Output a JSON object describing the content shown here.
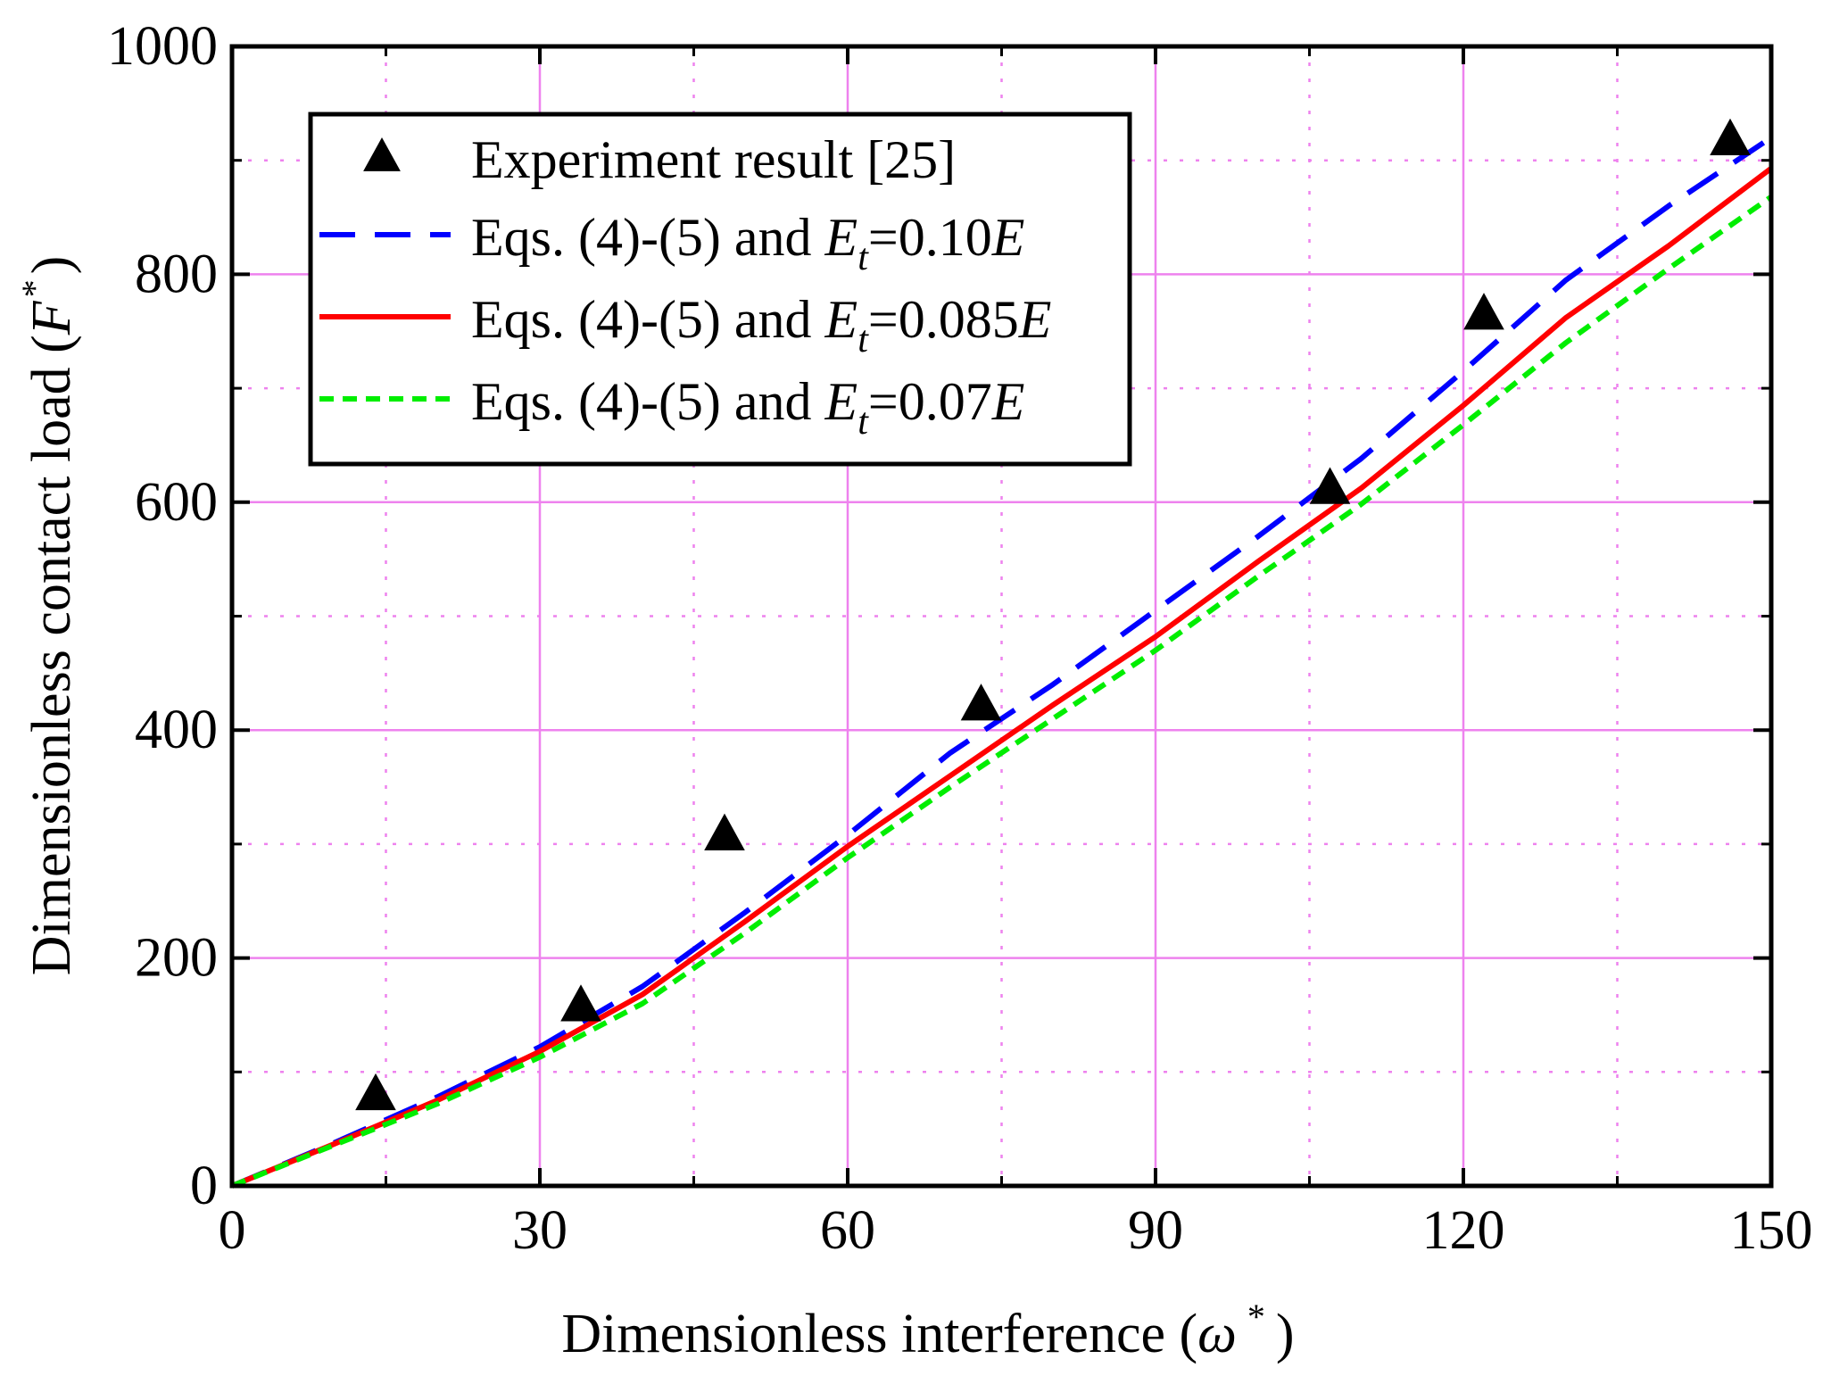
{
  "chart_data": {
    "type": "line",
    "title": "",
    "xlabel": {
      "prefix": "Dimensionless interference (",
      "symbol": "ω",
      "sup": "*",
      "suffix": ")"
    },
    "ylabel": {
      "prefix": "Dimensionless contact load (",
      "symbol": "F",
      "sup": "*",
      "suffix": ")"
    },
    "xlim": [
      0,
      150
    ],
    "ylim": [
      0,
      1000
    ],
    "xticks": [
      0,
      30,
      60,
      90,
      120,
      150
    ],
    "yticks": [
      0,
      200,
      400,
      600,
      800,
      1000
    ],
    "xminor": [
      15,
      45,
      75,
      105,
      135
    ],
    "yminor": [
      100,
      300,
      500,
      700,
      900
    ],
    "grid": true,
    "colors": {
      "grid": "#ee82ee",
      "experiment": "#000000",
      "e010": "#0000ff",
      "e0085": "#ff0000",
      "e007": "#00ee00"
    },
    "legend": {
      "position": "top-left",
      "entries": [
        {
          "key": "experiment",
          "text": "Experiment result [25]"
        },
        {
          "key": "e010",
          "prefix": "Eqs. (4)-(5) and ",
          "E": "E",
          "sub": "t",
          "value": "=0.10",
          "E2": "E"
        },
        {
          "key": "e0085",
          "prefix": "Eqs. (4)-(5) and ",
          "E": "E",
          "sub": "t",
          "value": "=0.085",
          "E2": "E"
        },
        {
          "key": "e007",
          "prefix": "Eqs. (4)-(5) and ",
          "E": "E",
          "sub": "t",
          "value": "=0.07",
          "E2": "E"
        }
      ]
    },
    "experiment": {
      "name": "Experiment result [25]",
      "x": [
        14,
        34,
        48,
        73,
        107,
        122,
        146
      ],
      "y": [
        80,
        158,
        308,
        422,
        612,
        765,
        918
      ]
    },
    "series": [
      {
        "name": "Eqs. (4)-(5) and Et=0.10E",
        "key": "e010",
        "dash": "dashed",
        "x": [
          0,
          10,
          20,
          30,
          40,
          50,
          60,
          70,
          80,
          90,
          100,
          110,
          120,
          130,
          140,
          150
        ],
        "y": [
          0,
          38,
          78,
          122,
          175,
          240,
          308,
          380,
          440,
          505,
          570,
          638,
          715,
          795,
          860,
          920
        ]
      },
      {
        "name": "Eqs. (4)-(5) and Et=0.085E",
        "key": "e0085",
        "dash": "solid",
        "x": [
          0,
          10,
          20,
          30,
          40,
          50,
          60,
          70,
          80,
          90,
          100,
          110,
          120,
          130,
          140,
          150
        ],
        "y": [
          0,
          37,
          75,
          118,
          168,
          232,
          298,
          360,
          422,
          482,
          548,
          612,
          685,
          762,
          825,
          893
        ]
      },
      {
        "name": "Eqs. (4)-(5) and Et=0.07E",
        "key": "e007",
        "dash": "short-dashed",
        "x": [
          0,
          10,
          20,
          30,
          40,
          50,
          60,
          70,
          80,
          90,
          100,
          110,
          120,
          130,
          140,
          150
        ],
        "y": [
          0,
          36,
          72,
          113,
          160,
          222,
          288,
          350,
          410,
          470,
          535,
          598,
          668,
          740,
          805,
          868
        ]
      }
    ]
  }
}
